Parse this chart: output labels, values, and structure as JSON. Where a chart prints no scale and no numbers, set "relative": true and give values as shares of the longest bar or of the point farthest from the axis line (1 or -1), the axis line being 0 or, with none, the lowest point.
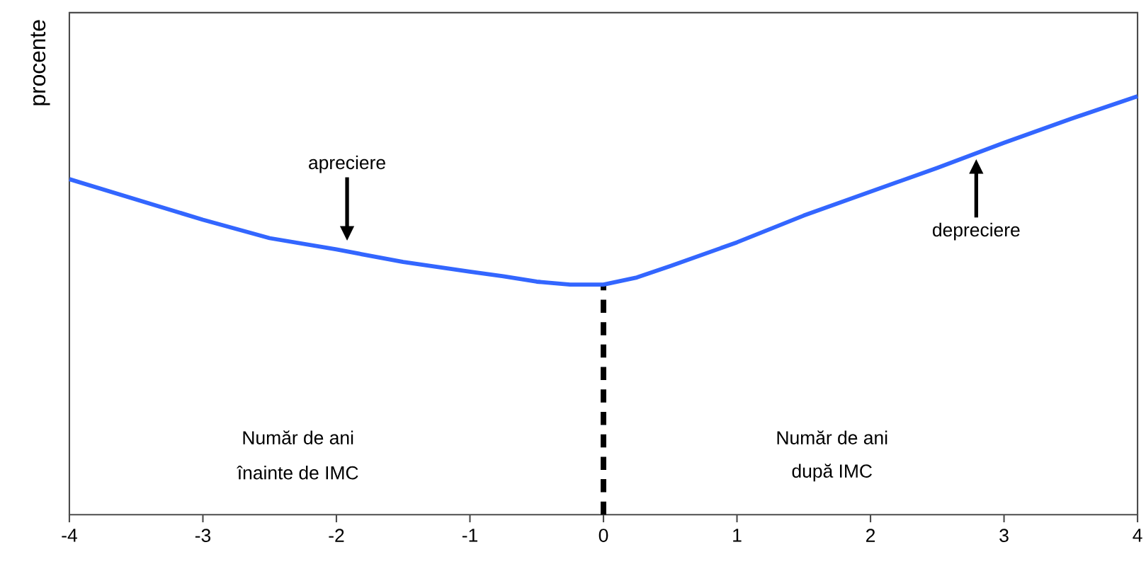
{
  "chart_data": {
    "type": "line",
    "relative": true,
    "ylabel": "procente",
    "x": [
      -4,
      -3,
      -2.5,
      -2,
      -1.5,
      -1,
      -0.75,
      -0.5,
      -0.25,
      0,
      0.25,
      0.5,
      1,
      1.5,
      2,
      2.5,
      3,
      3.5,
      4
    ],
    "series": [
      {
        "color": "#3366ff",
        "values": [
          0.802,
          0.705,
          0.661,
          0.634,
          0.604,
          0.581,
          0.57,
          0.557,
          0.55,
          0.55,
          0.567,
          0.594,
          0.651,
          0.715,
          0.772,
          0.829,
          0.889,
          0.946,
          1
        ]
      }
    ],
    "xlim": [
      -4,
      4
    ],
    "xticks": [
      -4,
      -3,
      -2,
      -1,
      0,
      1,
      2,
      3,
      4
    ],
    "ref_lines": [
      {
        "axis": "x",
        "value": 0,
        "color": "#000000",
        "line_style": "dashed"
      }
    ],
    "annotations": [
      "apreciere",
      "depreciere",
      "Număr de ani",
      "înainte de IMC",
      "Număr de ani",
      "după IMC"
    ]
  }
}
